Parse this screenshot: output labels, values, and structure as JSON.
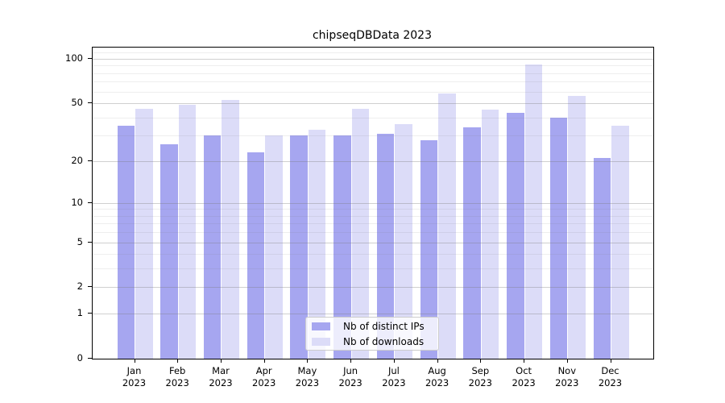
{
  "chart_data": {
    "type": "bar",
    "title": "chipseqDBData 2023",
    "categories": [
      "Jan",
      "Feb",
      "Mar",
      "Apr",
      "May",
      "Jun",
      "Jul",
      "Aug",
      "Sep",
      "Oct",
      "Nov",
      "Dec"
    ],
    "category_year": "2023",
    "series": [
      {
        "name": "Nb of distinct IPs",
        "color": "#a6a6f0",
        "values": [
          35,
          26,
          30,
          23,
          30,
          30,
          31,
          28,
          34,
          43,
          40,
          21
        ]
      },
      {
        "name": "Nb of downloads",
        "color": "#dcdcf8",
        "values": [
          46,
          49,
          53,
          30,
          33,
          46,
          36,
          58,
          45,
          92,
          56,
          35
        ]
      }
    ],
    "xlabel": "",
    "ylabel": "",
    "y_axis": {
      "scale": "log10(1+value)",
      "tick_values": [
        0,
        1,
        2,
        5,
        10,
        20,
        50,
        100
      ],
      "minor_gridline_values": [
        3,
        4,
        6,
        7,
        8,
        9,
        30,
        40,
        60,
        70,
        80,
        90,
        110
      ],
      "range": [
        0,
        118
      ]
    },
    "legend": {
      "entries": [
        "Nb of distinct IPs",
        "Nb of downloads"
      ],
      "position": "lower center, inside plot"
    },
    "grid": "horizontal major + minor, drawn above bars",
    "colors": {
      "major_grid": "rgba(120,120,120,0.35)",
      "minor_grid": "rgba(120,120,120,0.13)",
      "spine": "#000000",
      "background": "#ffffff"
    }
  }
}
